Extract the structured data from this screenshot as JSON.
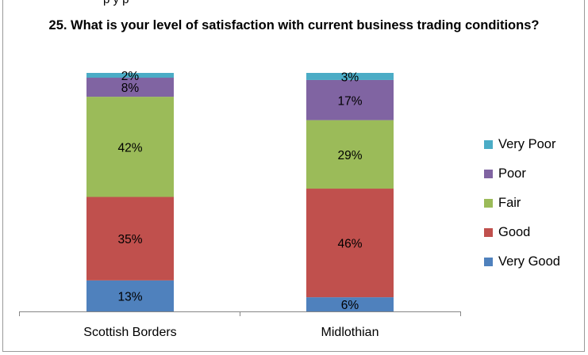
{
  "top_cut_text": "p             y p",
  "chart_data": {
    "type": "stacked-bar",
    "title": "25.  What is your level of satisfaction with current business trading conditions?",
    "categories": [
      "Scottish Borders",
      "Midlothian"
    ],
    "series": [
      {
        "name": "Very Good",
        "color": "#4f81bd",
        "values": [
          13,
          6
        ]
      },
      {
        "name": "Good",
        "color": "#c0504d",
        "values": [
          35,
          46
        ]
      },
      {
        "name": "Fair",
        "color": "#9bbb59",
        "values": [
          42,
          29
        ]
      },
      {
        "name": "Poor",
        "color": "#8064a2",
        "values": [
          8,
          17
        ]
      },
      {
        "name": "Very Poor",
        "color": "#4bacc6",
        "values": [
          2,
          3
        ]
      }
    ],
    "value_format": "percent",
    "legend_position": "right",
    "ylim": [
      0,
      100
    ]
  }
}
